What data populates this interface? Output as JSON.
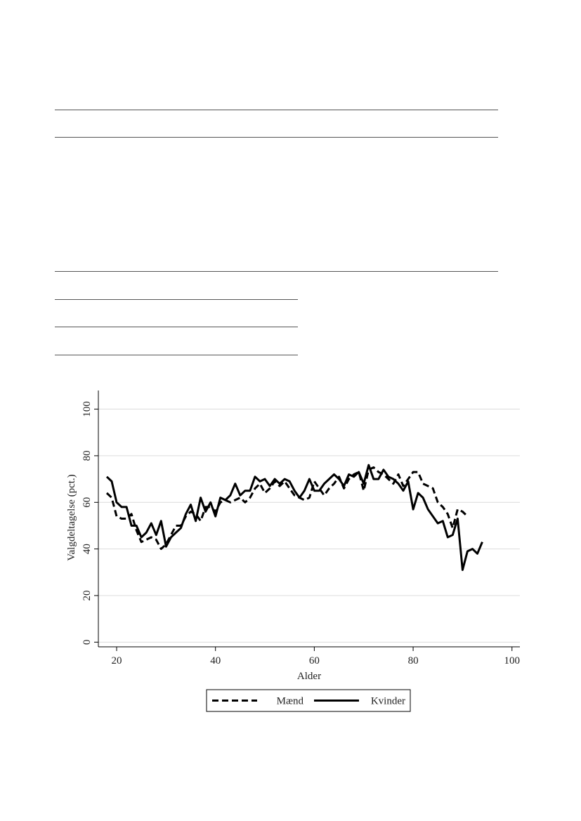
{
  "chart_data": {
    "type": "line",
    "x_label": "Alder",
    "y_label": "Valgdeltagelse (pct.)",
    "xlim": [
      16.3,
      101.6
    ],
    "ylim": [
      -2,
      108
    ],
    "xticks": [
      20,
      40,
      60,
      80,
      100
    ],
    "yticks": [
      0,
      20,
      40,
      60,
      80,
      100
    ],
    "grid": true,
    "legend": "bottom",
    "series": [
      {
        "name": "Mænd",
        "color": "#000000",
        "dash": true,
        "x": [
          18,
          19,
          20,
          21,
          22,
          23,
          24,
          25,
          26,
          27,
          28,
          29,
          30,
          31,
          32,
          33,
          34,
          35,
          36,
          37,
          38,
          39,
          40,
          41,
          42,
          43,
          44,
          45,
          46,
          47,
          48,
          49,
          50,
          51,
          52,
          53,
          54,
          55,
          56,
          57,
          58,
          59,
          60,
          61,
          62,
          63,
          64,
          65,
          66,
          67,
          68,
          69,
          70,
          71,
          72,
          73,
          74,
          75,
          76,
          77,
          78,
          79,
          80,
          81,
          82,
          83,
          84,
          85,
          86,
          87,
          88,
          89,
          90,
          91
        ],
        "values": [
          64,
          62,
          54,
          53,
          53,
          55,
          48,
          43,
          44,
          45,
          44,
          40,
          42,
          46,
          50,
          50,
          54,
          56,
          55,
          52,
          58,
          58,
          56,
          60,
          61,
          60,
          61,
          62,
          60,
          62,
          66,
          68,
          64,
          66,
          69,
          67,
          69,
          66,
          63,
          62,
          61,
          62,
          69,
          66,
          63,
          66,
          68,
          71,
          66,
          70,
          72,
          73,
          65,
          74,
          75,
          73,
          72,
          70,
          68,
          72,
          67,
          70,
          73,
          73,
          68,
          67,
          66,
          60,
          58,
          55,
          49,
          57,
          56,
          54
        ]
      },
      {
        "name": "Kvinder",
        "color": "#000000",
        "dash": false,
        "x": [
          18,
          19,
          20,
          21,
          22,
          23,
          24,
          25,
          26,
          27,
          28,
          29,
          30,
          31,
          32,
          33,
          34,
          35,
          36,
          37,
          38,
          39,
          40,
          41,
          42,
          43,
          44,
          45,
          46,
          47,
          48,
          49,
          50,
          51,
          52,
          53,
          54,
          55,
          56,
          57,
          58,
          59,
          60,
          61,
          62,
          63,
          64,
          65,
          66,
          67,
          68,
          69,
          70,
          71,
          72,
          73,
          74,
          75,
          76,
          77,
          78,
          79,
          80,
          81,
          82,
          83,
          84,
          85,
          86,
          87,
          88,
          89,
          90,
          91,
          92,
          93,
          94
        ],
        "values": [
          71,
          69,
          60,
          58,
          58,
          50,
          50,
          45,
          47,
          51,
          46,
          52,
          41,
          45,
          47,
          49,
          55,
          59,
          52,
          62,
          56,
          60,
          54,
          62,
          61,
          63,
          68,
          63,
          65,
          65,
          71,
          69,
          70,
          67,
          70,
          68,
          70,
          69,
          65,
          62,
          65,
          70,
          65,
          65,
          68,
          70,
          72,
          70,
          67,
          72,
          71,
          73,
          68,
          76,
          70,
          70,
          74,
          71,
          70,
          68,
          65,
          69,
          57,
          64,
          62,
          57,
          54,
          51,
          52,
          45,
          46,
          53,
          31,
          39,
          40,
          38,
          43
        ]
      }
    ]
  }
}
